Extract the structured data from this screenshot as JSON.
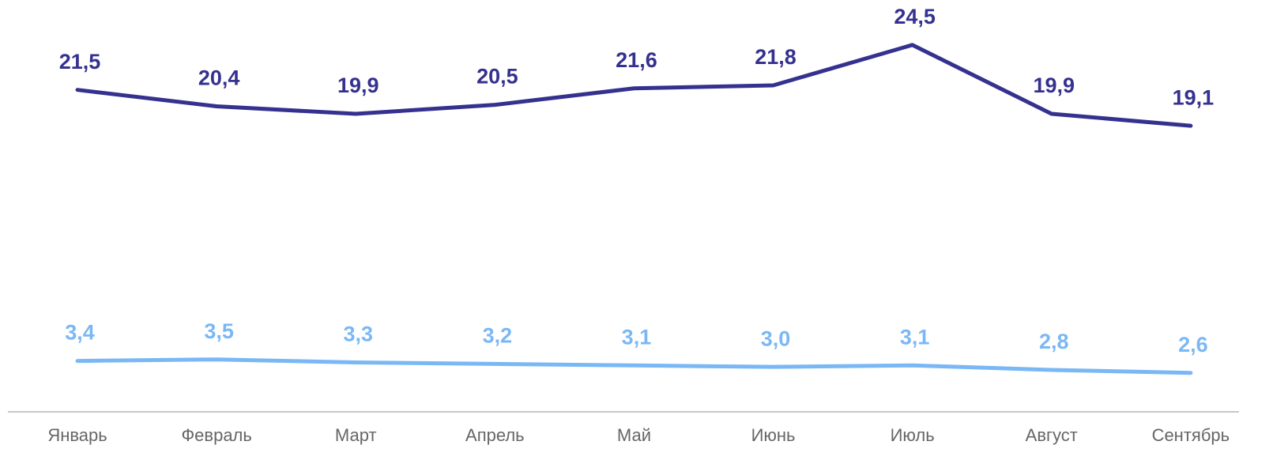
{
  "chart_data": {
    "type": "line",
    "categories": [
      "Январь",
      "Февраль",
      "Март",
      "Апрель",
      "Май",
      "Июнь",
      "Июль",
      "Август",
      "Сентябрь"
    ],
    "series": [
      {
        "color": "#35318f",
        "values": [
          21.5,
          20.4,
          19.9,
          20.5,
          21.6,
          21.8,
          24.5,
          19.9,
          19.1
        ],
        "value_labels": [
          "21,5",
          "20,4",
          "19,9",
          "20,5",
          "21,6",
          "21,8",
          "24,5",
          "19,9",
          "19,1"
        ]
      },
      {
        "color": "#7ab8f5",
        "values": [
          3.4,
          3.5,
          3.3,
          3.2,
          3.1,
          3.0,
          3.1,
          2.8,
          2.6
        ],
        "value_labels": [
          "3,4",
          "3,5",
          "3,3",
          "3,2",
          "3,1",
          "3,0",
          "3,1",
          "2,8",
          "2,6"
        ]
      }
    ],
    "ylim": [
      0,
      27.5
    ]
  }
}
